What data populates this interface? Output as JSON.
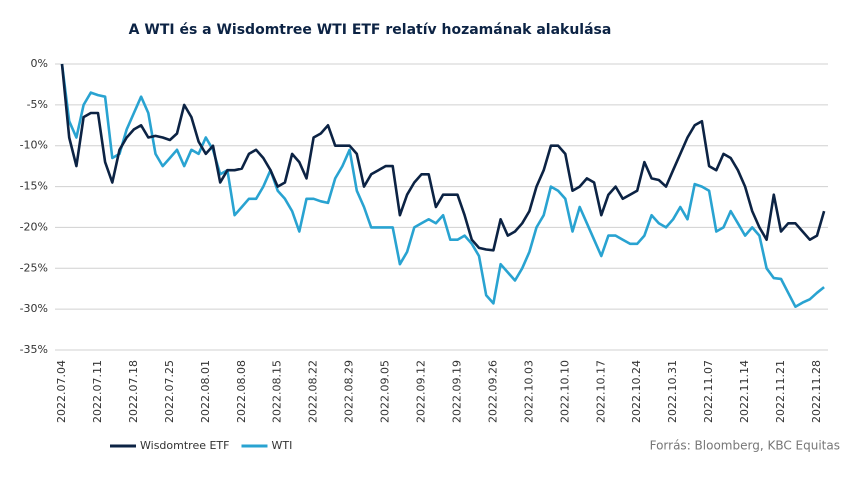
{
  "chart_data": {
    "type": "line",
    "title": "A WTI és a Wisdomtree WTI ETF relatív hozamának alakulása",
    "source": "Forrás: Bloomberg, KBC Equitas",
    "categories": [
      "2022.07.04",
      null,
      null,
      null,
      null,
      "2022.07.11",
      null,
      null,
      null,
      null,
      "2022.07.18",
      null,
      null,
      null,
      null,
      "2022.07.25",
      null,
      null,
      null,
      null,
      "2022.08.01",
      null,
      null,
      null,
      null,
      "2022.08.08",
      null,
      null,
      null,
      null,
      "2022.08.15",
      null,
      null,
      null,
      null,
      "2022.08.22",
      null,
      null,
      null,
      null,
      "2022.08.29",
      null,
      null,
      null,
      null,
      "2022.09.05",
      null,
      null,
      null,
      null,
      "2022.09.12",
      null,
      null,
      null,
      null,
      "2022.09.19",
      null,
      null,
      null,
      null,
      "2022.09.26",
      null,
      null,
      null,
      null,
      "2022.10.03",
      null,
      null,
      null,
      null,
      "2022.10.10",
      null,
      null,
      null,
      null,
      "2022.10.17",
      null,
      null,
      null,
      null,
      "2022.10.24",
      null,
      null,
      null,
      null,
      "2022.10.31",
      null,
      null,
      null,
      null,
      "2022.11.07",
      null,
      null,
      null,
      null,
      "2022.11.14",
      null,
      null,
      null,
      null,
      "2022.11.21",
      null,
      null,
      null,
      null,
      "2022.11.28",
      null
    ],
    "series": [
      {
        "name": "Wisdomtree ETF",
        "color": "#0c2344",
        "values": [
          0,
          -9,
          -12.5,
          -6.5,
          -6,
          -6,
          -12,
          -14.5,
          -10.5,
          -9,
          -8,
          -7.5,
          -9,
          -8.8,
          -9,
          -9.3,
          -8.5,
          -5,
          -6.5,
          -9.5,
          -11,
          -10,
          -14.5,
          -13,
          -13,
          -12.8,
          -11,
          -10.5,
          -11.5,
          -13,
          -15,
          -14.5,
          -11,
          -12,
          -14,
          -9,
          -8.5,
          -7.5,
          -10,
          -10,
          -10,
          -11,
          -15,
          -13.5,
          -13,
          -12.5,
          -12.5,
          -18.5,
          -16,
          -14.5,
          -13.5,
          -13.5,
          -17.5,
          -16,
          -16,
          -16,
          -18.5,
          -21.5,
          -22.5,
          -22.7,
          -22.8,
          -19,
          -21,
          -20.5,
          -19.5,
          -18,
          -15,
          -13,
          -10,
          -10,
          -11,
          -15.5,
          -15,
          -14,
          -14.5,
          -18.5,
          -16,
          -15,
          -16.5,
          -16,
          -15.5,
          -12,
          -14,
          -14.2,
          -15,
          -13,
          -11,
          -9,
          -7.5,
          -7,
          -12.5,
          -13,
          -11,
          -11.5,
          -13,
          -15,
          -18,
          -20,
          -21.5,
          -16,
          -20.5,
          -19.5,
          -19.5,
          -20.5,
          -21.5,
          -21,
          -18
        ]
      },
      {
        "name": "WTI",
        "color": "#29a3d1",
        "values": [
          0,
          -7,
          -9,
          -5,
          -3.5,
          -3.8,
          -4,
          -11.5,
          -11,
          -8,
          -6,
          -4,
          -6,
          -11,
          -12.5,
          -11.5,
          -10.5,
          -12.5,
          -10.5,
          -11,
          -9,
          -10.5,
          -13.5,
          -13,
          -18.5,
          -17.5,
          -16.5,
          -16.5,
          -15,
          -13,
          -15.5,
          -16.5,
          -18,
          -20.5,
          -16.5,
          -16.5,
          -16.8,
          -17,
          -14,
          -12.5,
          -10.5,
          -15.5,
          -17.5,
          -20,
          -20,
          -20,
          -20,
          -24.5,
          -23,
          -20,
          -19.5,
          -19,
          -19.5,
          -18.5,
          -21.5,
          -21.5,
          -21,
          -22,
          -23.5,
          -28.3,
          -29.3,
          -24.5,
          -25.5,
          -26.5,
          -25,
          -23,
          -20,
          -18.5,
          -15,
          -15.5,
          -16.5,
          -20.5,
          -17.5,
          -19.5,
          -21.5,
          -23.5,
          -21,
          -21,
          -21.5,
          -22,
          -22,
          -21,
          -18.5,
          -19.5,
          -20,
          -19,
          -17.5,
          -19,
          -14.7,
          -15,
          -15.5,
          -20.5,
          -20,
          -18,
          -19.5,
          -21,
          -20,
          -21,
          -25,
          -26.2,
          -26.3,
          -28,
          -29.7,
          -29.2,
          -28.8,
          -28,
          -27.3
        ]
      }
    ],
    "ylim": [
      -35,
      0
    ],
    "yticks": [
      {
        "value": 0,
        "label": "0%"
      },
      {
        "value": -5,
        "label": "-5%"
      },
      {
        "value": -10,
        "label": "-10%"
      },
      {
        "value": -15,
        "label": "-15%"
      },
      {
        "value": -20,
        "label": "-20%"
      },
      {
        "value": -25,
        "label": "-25%"
      },
      {
        "value": -30,
        "label": "-30%"
      },
      {
        "value": -35,
        "label": "-35%"
      }
    ],
    "grid": true,
    "legend": "bottom-left"
  }
}
